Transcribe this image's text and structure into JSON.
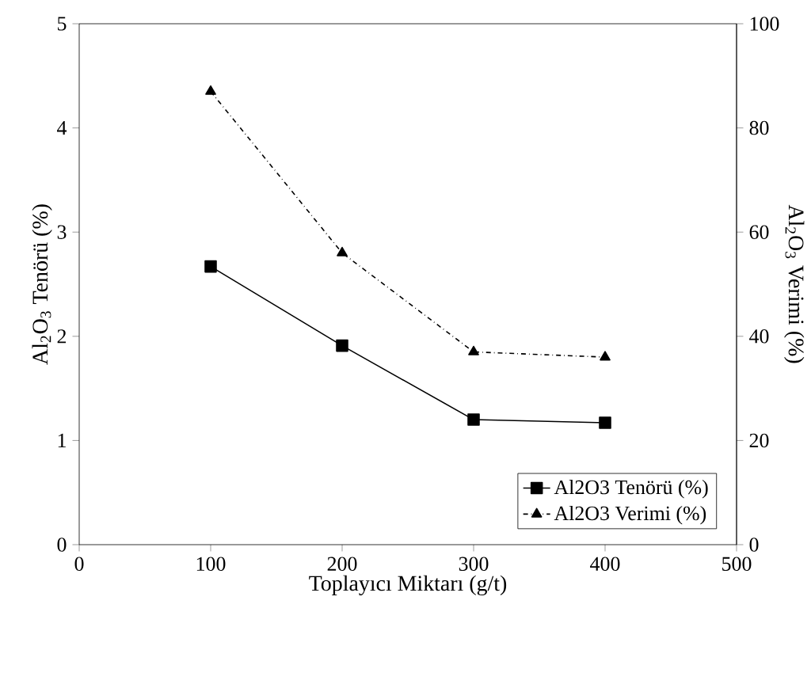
{
  "chart_data": {
    "type": "line",
    "xlabel": "Toplayıcı Miktarı (g/t)",
    "ylabel": "Al$_{2}$O$_{3}$ Tenörü (%)",
    "y2label": "Al$_{2}$O$_{3}$ Verimi (%)",
    "xlim": [
      0,
      500
    ],
    "xticks": [
      0,
      100,
      200,
      300,
      400,
      500
    ],
    "ylim": [
      0,
      5
    ],
    "yticks": [
      0,
      1,
      2,
      3,
      4,
      5
    ],
    "y2lim": [
      0,
      100
    ],
    "y2ticks": [
      0,
      20,
      40,
      60,
      80,
      100
    ],
    "x": [
      100,
      200,
      300,
      400
    ],
    "series": [
      {
        "name": "Al2O3 Tenörü (%)",
        "color": "#000000",
        "values": [
          2.67,
          1.91,
          1.2,
          1.17
        ],
        "marker": "square",
        "line_style": "solid"
      },
      {
        "name": "Al2O3 Verimi (%)",
        "color": "#000000",
        "values": [
          87,
          56,
          37,
          36
        ],
        "marker": "triangle",
        "line_style": "dashed",
        "axis": "y2"
      }
    ],
    "legend": "bottom right"
  }
}
